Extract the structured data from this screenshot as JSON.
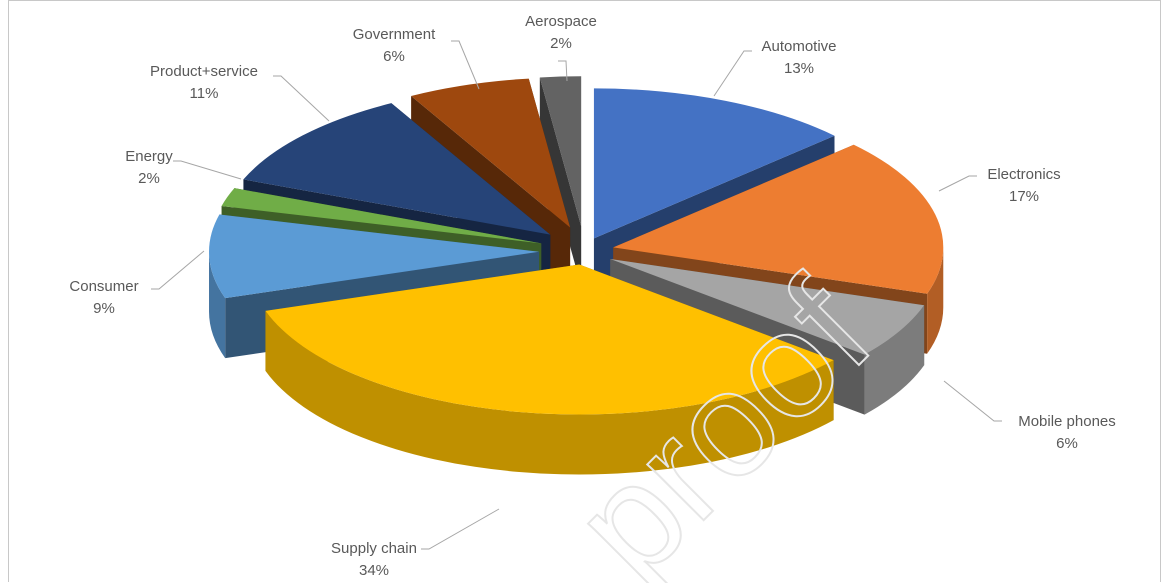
{
  "chart_data": {
    "type": "pie",
    "style": "3d-exploded",
    "slices": [
      {
        "label": "Automotive",
        "value": 13,
        "pct": "13%",
        "color": "#4472C4"
      },
      {
        "label": "Electronics",
        "value": 17,
        "pct": "17%",
        "color": "#ED7D31"
      },
      {
        "label": "Mobile phones",
        "value": 6,
        "pct": "6%",
        "color": "#A5A5A5"
      },
      {
        "label": "Supply chain",
        "value": 34,
        "pct": "34%",
        "color": "#FFC000"
      },
      {
        "label": "Consumer",
        "value": 9,
        "pct": "9%",
        "color": "#5B9BD5"
      },
      {
        "label": "Energy",
        "value": 2,
        "pct": "2%",
        "color": "#70AD47"
      },
      {
        "label": "Product+service",
        "value": 11,
        "pct": "11%",
        "color": "#264478"
      },
      {
        "label": "Government",
        "value": 6,
        "pct": "6%",
        "color": "#9E480E"
      },
      {
        "label": "Aerospace",
        "value": 2,
        "pct": "2%",
        "color": "#636363"
      }
    ],
    "legend": "none",
    "watermark": "proof"
  }
}
